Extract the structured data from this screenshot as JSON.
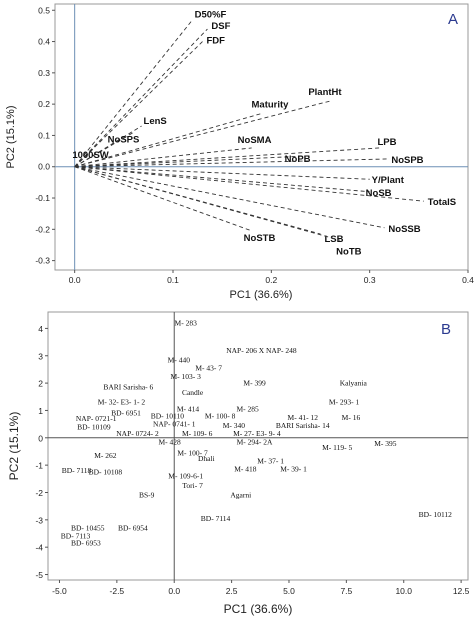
{
  "chart_data": [
    {
      "type": "scatter",
      "subtype": "loading-plot",
      "panel_label": "A",
      "xlabel": "PC1 (36.6%)",
      "ylabel": "PC2 (15.1%)",
      "xlim": [
        -0.02,
        0.4
      ],
      "ylim": [
        -0.33,
        0.52
      ],
      "xticks": [
        "0.0",
        "0.1",
        "0.2",
        "0.3",
        "0.4"
      ],
      "yticks": [
        "-0.3",
        "-0.2",
        "-0.1",
        "0.0",
        "0.1",
        "0.2",
        "0.3",
        "0.4",
        "0.5"
      ],
      "xtick_values": [
        0.0,
        0.1,
        0.2,
        0.3,
        0.4
      ],
      "ytick_values": [
        -0.3,
        -0.2,
        -0.1,
        0.0,
        0.1,
        0.2,
        0.3,
        0.4,
        0.5
      ],
      "loadings": [
        {
          "label": "D50%F",
          "x": 0.12,
          "y": 0.47
        },
        {
          "label": "DSF",
          "x": 0.135,
          "y": 0.44
        },
        {
          "label": "FDF",
          "x": 0.13,
          "y": 0.4
        },
        {
          "label": "LenS",
          "x": 0.068,
          "y": 0.13
        },
        {
          "label": "NoSPS",
          "x": 0.06,
          "y": 0.11
        },
        {
          "label": "1000SW",
          "x": 0.02,
          "y": 0.06
        },
        {
          "label": "Maturity",
          "x": 0.19,
          "y": 0.17
        },
        {
          "label": "PlantHt",
          "x": 0.26,
          "y": 0.21
        },
        {
          "label": "NoSMA",
          "x": 0.18,
          "y": 0.06
        },
        {
          "label": "NoPB",
          "x": 0.24,
          "y": 0.035
        },
        {
          "label": "LPB",
          "x": 0.31,
          "y": 0.06
        },
        {
          "label": "NoSPB",
          "x": 0.32,
          "y": 0.025
        },
        {
          "label": "Y/Plant",
          "x": 0.3,
          "y": -0.04
        },
        {
          "label": "NoSB",
          "x": 0.3,
          "y": -0.08
        },
        {
          "label": "TotalS",
          "x": 0.355,
          "y": -0.11
        },
        {
          "label": "NoSSB",
          "x": 0.315,
          "y": -0.195
        },
        {
          "label": "NoSTB",
          "x": 0.18,
          "y": -0.205
        },
        {
          "label": "LSB",
          "x": 0.25,
          "y": -0.215
        },
        {
          "label": "NoTB",
          "x": 0.27,
          "y": -0.235
        }
      ],
      "grid": false,
      "legend": "none"
    },
    {
      "type": "scatter",
      "subtype": "score-plot",
      "panel_label": "B",
      "xlabel": "PC1 (36.6%)",
      "ylabel": "PC2 (15.1%)",
      "xlim": [
        -5.5,
        12.8
      ],
      "ylim": [
        -5.2,
        4.6
      ],
      "xticks": [
        "-5.0",
        "-2.5",
        "0.0",
        "2.5",
        "5.0",
        "7.5",
        "10.0",
        "12.5"
      ],
      "yticks": [
        "-5",
        "-4",
        "-3",
        "-2",
        "-1",
        "0",
        "1",
        "2",
        "3",
        "4"
      ],
      "xtick_values": [
        -5.0,
        -2.5,
        0.0,
        2.5,
        5.0,
        7.5,
        10.0,
        12.5
      ],
      "ytick_values": [
        -5,
        -4,
        -3,
        -2,
        -1,
        0,
        1,
        2,
        3,
        4
      ],
      "points": [
        {
          "label": "M- 283",
          "x": 0.5,
          "y": 4.2
        },
        {
          "label": "NAP- 206 X NAP- 248",
          "x": 3.8,
          "y": 3.2
        },
        {
          "label": "M- 440",
          "x": 0.2,
          "y": 2.85
        },
        {
          "label": "M- 43- 7",
          "x": 1.5,
          "y": 2.55
        },
        {
          "label": "Kalyania",
          "x": 7.8,
          "y": 2.0
        },
        {
          "label": "M- 103- 3",
          "x": 0.5,
          "y": 2.25
        },
        {
          "label": "M- 399",
          "x": 3.5,
          "y": 2.0
        },
        {
          "label": "BARI Sarisha- 6",
          "x": -2.0,
          "y": 1.85
        },
        {
          "label": "Candle",
          "x": 0.8,
          "y": 1.65
        },
        {
          "label": "M- 293- 1",
          "x": 7.4,
          "y": 1.3
        },
        {
          "label": "M- 32- E3- 1- 2",
          "x": -2.3,
          "y": 1.3
        },
        {
          "label": "M- 414",
          "x": 0.6,
          "y": 1.05
        },
        {
          "label": "M- 285",
          "x": 3.2,
          "y": 1.05
        },
        {
          "label": "BD- 6951",
          "x": -2.1,
          "y": 0.9
        },
        {
          "label": "BD- 10110",
          "x": -0.3,
          "y": 0.8
        },
        {
          "label": "M- 100- 8",
          "x": 2.0,
          "y": 0.8
        },
        {
          "label": "M- 41- 12",
          "x": 5.6,
          "y": 0.75
        },
        {
          "label": "M- 16",
          "x": 7.7,
          "y": 0.75
        },
        {
          "label": "NAP- 0721-1",
          "x": -3.4,
          "y": 0.7
        },
        {
          "label": "NAP- 0741- 1",
          "x": 0.0,
          "y": 0.5
        },
        {
          "label": "M- 340",
          "x": 2.6,
          "y": 0.45
        },
        {
          "label": "BARI Sarisha- 14",
          "x": 5.6,
          "y": 0.45
        },
        {
          "label": "BD- 10109",
          "x": -3.5,
          "y": 0.4
        },
        {
          "label": "NAP- 0724- 2",
          "x": -1.6,
          "y": 0.15
        },
        {
          "label": "M- 109- 6",
          "x": 1.0,
          "y": 0.15
        },
        {
          "label": "M- 27- E3- 9- 4",
          "x": 3.6,
          "y": 0.15
        },
        {
          "label": "M- 428",
          "x": -0.2,
          "y": -0.15
        },
        {
          "label": "M- 294- 2A",
          "x": 3.5,
          "y": -0.15
        },
        {
          "label": "M- 119- 5",
          "x": 7.1,
          "y": -0.35
        },
        {
          "label": "M- 395",
          "x": 9.2,
          "y": -0.2
        },
        {
          "label": "M- 262",
          "x": -3.0,
          "y": -0.65
        },
        {
          "label": "M- 100- 7",
          "x": 0.8,
          "y": -0.55
        },
        {
          "label": "Dhali",
          "x": 1.4,
          "y": -0.75
        },
        {
          "label": "M- 37- 1",
          "x": 4.2,
          "y": -0.85
        },
        {
          "label": "BD- 7118",
          "x": -4.9,
          "y": -1.2
        },
        {
          "label": "BD- 10108",
          "x": -3.0,
          "y": -1.25
        },
        {
          "label": "M- 418",
          "x": 3.1,
          "y": -1.15
        },
        {
          "label": "M- 39- 1",
          "x": 5.2,
          "y": -1.15
        },
        {
          "label": "M- 109-6-1",
          "x": 0.5,
          "y": -1.4
        },
        {
          "label": "Tori- 7",
          "x": 0.8,
          "y": -1.75
        },
        {
          "label": "BS-9",
          "x": -1.2,
          "y": -2.1
        },
        {
          "label": "Agarni",
          "x": 2.9,
          "y": -2.1
        },
        {
          "label": "BD- 10112",
          "x": 12.1,
          "y": -2.8
        },
        {
          "label": "BD- 7114",
          "x": 1.8,
          "y": -2.95
        },
        {
          "label": "BD- 10455",
          "x": -4.5,
          "y": -3.3
        },
        {
          "label": "BD- 6954",
          "x": -1.8,
          "y": -3.3
        },
        {
          "label": "BD- 7113",
          "x": -4.3,
          "y": -3.6
        },
        {
          "label": "BD- 6953",
          "x": -4.5,
          "y": -3.85
        }
      ],
      "grid": false,
      "legend": "none"
    }
  ]
}
